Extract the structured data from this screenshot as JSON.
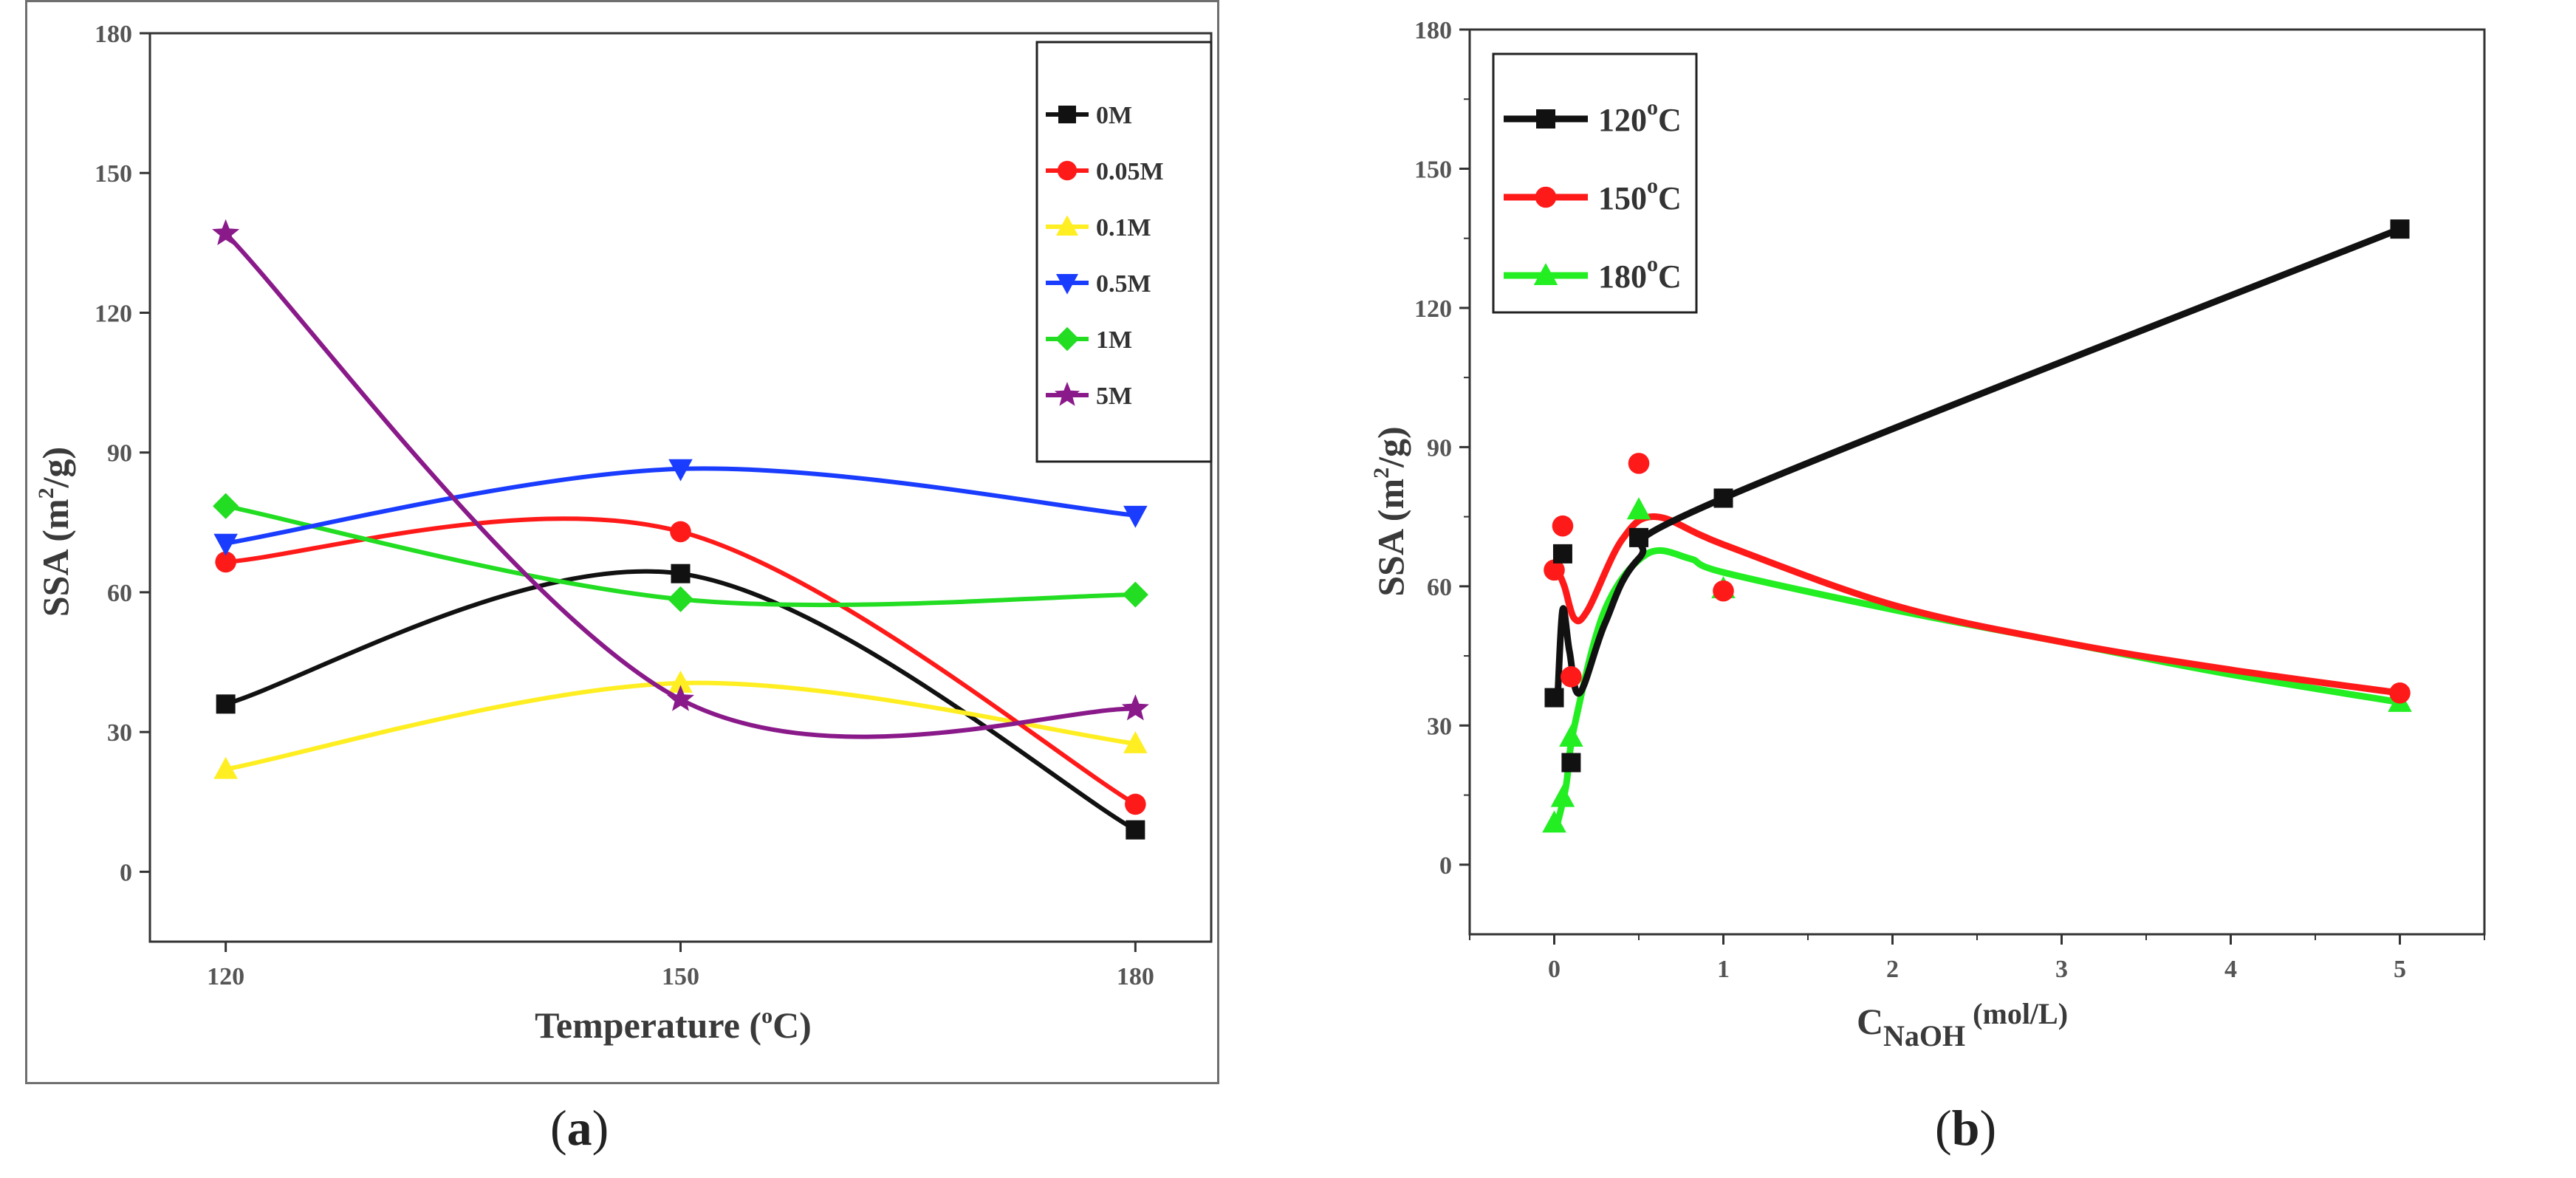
{
  "chart_data": [
    {
      "type": "line",
      "panel": "a",
      "panel_label": "a",
      "xlabel": "Temperature",
      "xlabel_unit_sup": "o",
      "xlabel_unit": "C",
      "ylabel": "SSA",
      "ylabel_unit": "m",
      "ylabel_unit_sup": "2",
      "ylabel_unit_tail": "/g",
      "categories": [
        "120",
        "150",
        "180"
      ],
      "x": [
        120,
        150,
        180
      ],
      "xlim": [
        115,
        185
      ],
      "ylim": [
        -15,
        180
      ],
      "yticks": [
        0,
        30,
        60,
        90,
        120,
        150,
        180
      ],
      "legend_position": "top-right",
      "series": [
        {
          "name": "0M",
          "color": "#111111",
          "marker": "square",
          "values": [
            36,
            64,
            9
          ]
        },
        {
          "name": "0.05M",
          "color": "#ff1a1a",
          "marker": "circle",
          "values": [
            66.5,
            73,
            14.5
          ]
        },
        {
          "name": "0.1M",
          "color": "#ffee22",
          "marker": "triangle-up",
          "values": [
            22,
            40.5,
            27.5
          ]
        },
        {
          "name": "0.5M",
          "color": "#1a3cff",
          "marker": "triangle-down",
          "values": [
            70.5,
            86.5,
            76.5
          ]
        },
        {
          "name": "1M",
          "color": "#22dd22",
          "marker": "diamond",
          "values": [
            78.5,
            58.5,
            59.5
          ]
        },
        {
          "name": "5M",
          "color": "#8a1a8a",
          "marker": "star",
          "values": [
            137,
            37,
            35
          ]
        }
      ]
    },
    {
      "type": "line",
      "panel": "b",
      "panel_label": "b",
      "xlabel_main": "C",
      "xlabel_sub": "NaOH",
      "xlabel_unit": "(mol/L)",
      "ylabel": "SSA",
      "ylabel_unit": "m",
      "ylabel_unit_sup": "2",
      "ylabel_unit_tail": "/g",
      "xlim": [
        -0.5,
        5.5
      ],
      "ylim": [
        -15,
        180
      ],
      "xticks": [
        0,
        1,
        2,
        3,
        4,
        5
      ],
      "yticks": [
        0,
        30,
        60,
        90,
        120,
        150,
        180
      ],
      "legend_position": "top-left",
      "series": [
        {
          "name": "120",
          "name_sup": "o",
          "name_tail": "C",
          "color": "#111111",
          "marker": "square",
          "x": [
            0,
            0.05,
            0.1,
            0.5,
            1,
            5
          ],
          "values": [
            36,
            67,
            22,
            70.5,
            79,
            137
          ]
        },
        {
          "name": "150",
          "name_sup": "o",
          "name_tail": "C",
          "color": "#ff1a1a",
          "marker": "circle",
          "x": [
            0,
            0.05,
            0.1,
            0.5,
            1,
            5
          ],
          "values": [
            63.5,
            73,
            40.5,
            86.5,
            59,
            37
          ]
        },
        {
          "name": "180",
          "name_sup": "o",
          "name_tail": "C",
          "color": "#22ee22",
          "marker": "triangle-up",
          "x": [
            0,
            0.05,
            0.1,
            0.5,
            1,
            5
          ],
          "values": [
            9,
            14.5,
            27.5,
            76.5,
            59.5,
            35
          ]
        }
      ]
    }
  ]
}
